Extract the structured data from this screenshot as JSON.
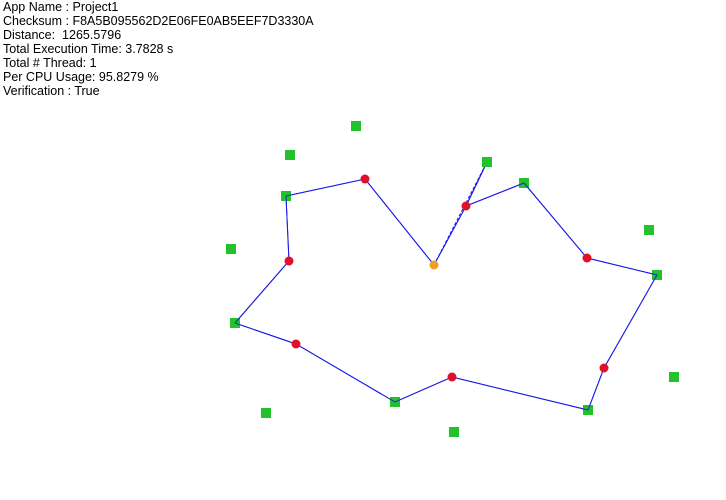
{
  "info": {
    "app_name": "App Name : Project1",
    "checksum": "Checksum : F8A5B095562D2E06FE0AB5EEF7D3330A",
    "distance": "Distance:  1265.5796",
    "exec_time": "Total Execution Time: 3.7828 s",
    "threads": "Total # Thread: 1",
    "cpu_usage": "Per CPU Usage: 95.8279 %",
    "verification": "Verification : True"
  },
  "colors": {
    "path": "#1a1ae6",
    "green_node": "#22c22a",
    "red_node": "#e0102a",
    "orange_node": "#f0a020"
  }
}
